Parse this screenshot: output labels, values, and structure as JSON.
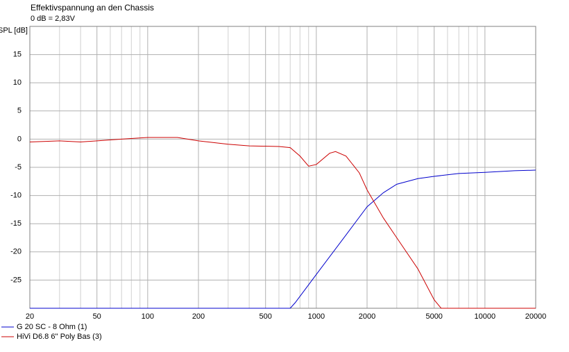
{
  "chart_data": {
    "type": "line",
    "title": "Effektivspannung an den Chassis",
    "subtitle": "0 dB = 2,83V",
    "y_label": "SPL [dB]",
    "xscale": "log",
    "xlim": [
      20,
      20000
    ],
    "xticks": [
      20,
      50,
      100,
      200,
      500,
      1000,
      2000,
      5000,
      10000,
      20000
    ],
    "xminorticks": [
      30,
      40,
      60,
      70,
      80,
      90,
      300,
      400,
      600,
      700,
      800,
      900,
      3000,
      4000,
      6000,
      7000,
      8000,
      9000
    ],
    "ylim": [
      -30,
      20
    ],
    "yticks": [
      -25,
      -20,
      -15,
      -10,
      -5,
      0,
      5,
      10,
      15
    ],
    "grid": true,
    "series": [
      {
        "name": "G 20 SC - 8 Ohm (1)",
        "color": "#0000cc",
        "x": [
          20,
          700,
          750,
          1000,
          1500,
          2000,
          2500,
          3000,
          4000,
          5000,
          7000,
          10000,
          15000,
          20000
        ],
        "values": [
          -30,
          -30,
          -29,
          -24,
          -17,
          -12,
          -9.5,
          -8,
          -7,
          -6.6,
          -6.1,
          -5.9,
          -5.6,
          -5.5
        ]
      },
      {
        "name": "HiVi D6.8 6'' Poly Bas (3)",
        "color": "#cc0000",
        "x": [
          20,
          30,
          40,
          50,
          70,
          100,
          150,
          200,
          300,
          400,
          600,
          700,
          800,
          900,
          1000,
          1200,
          1300,
          1500,
          1800,
          2000,
          2500,
          3000,
          4000,
          5000,
          5500,
          20000
        ],
        "values": [
          -0.5,
          -0.3,
          -0.5,
          -0.3,
          0,
          0.3,
          0.3,
          -0.3,
          -0.9,
          -1.2,
          -1.3,
          -1.5,
          -3,
          -4.8,
          -4.5,
          -2.5,
          -2.2,
          -3,
          -6,
          -9,
          -14,
          -17.5,
          -23,
          -28.5,
          -30,
          -30
        ]
      }
    ]
  }
}
